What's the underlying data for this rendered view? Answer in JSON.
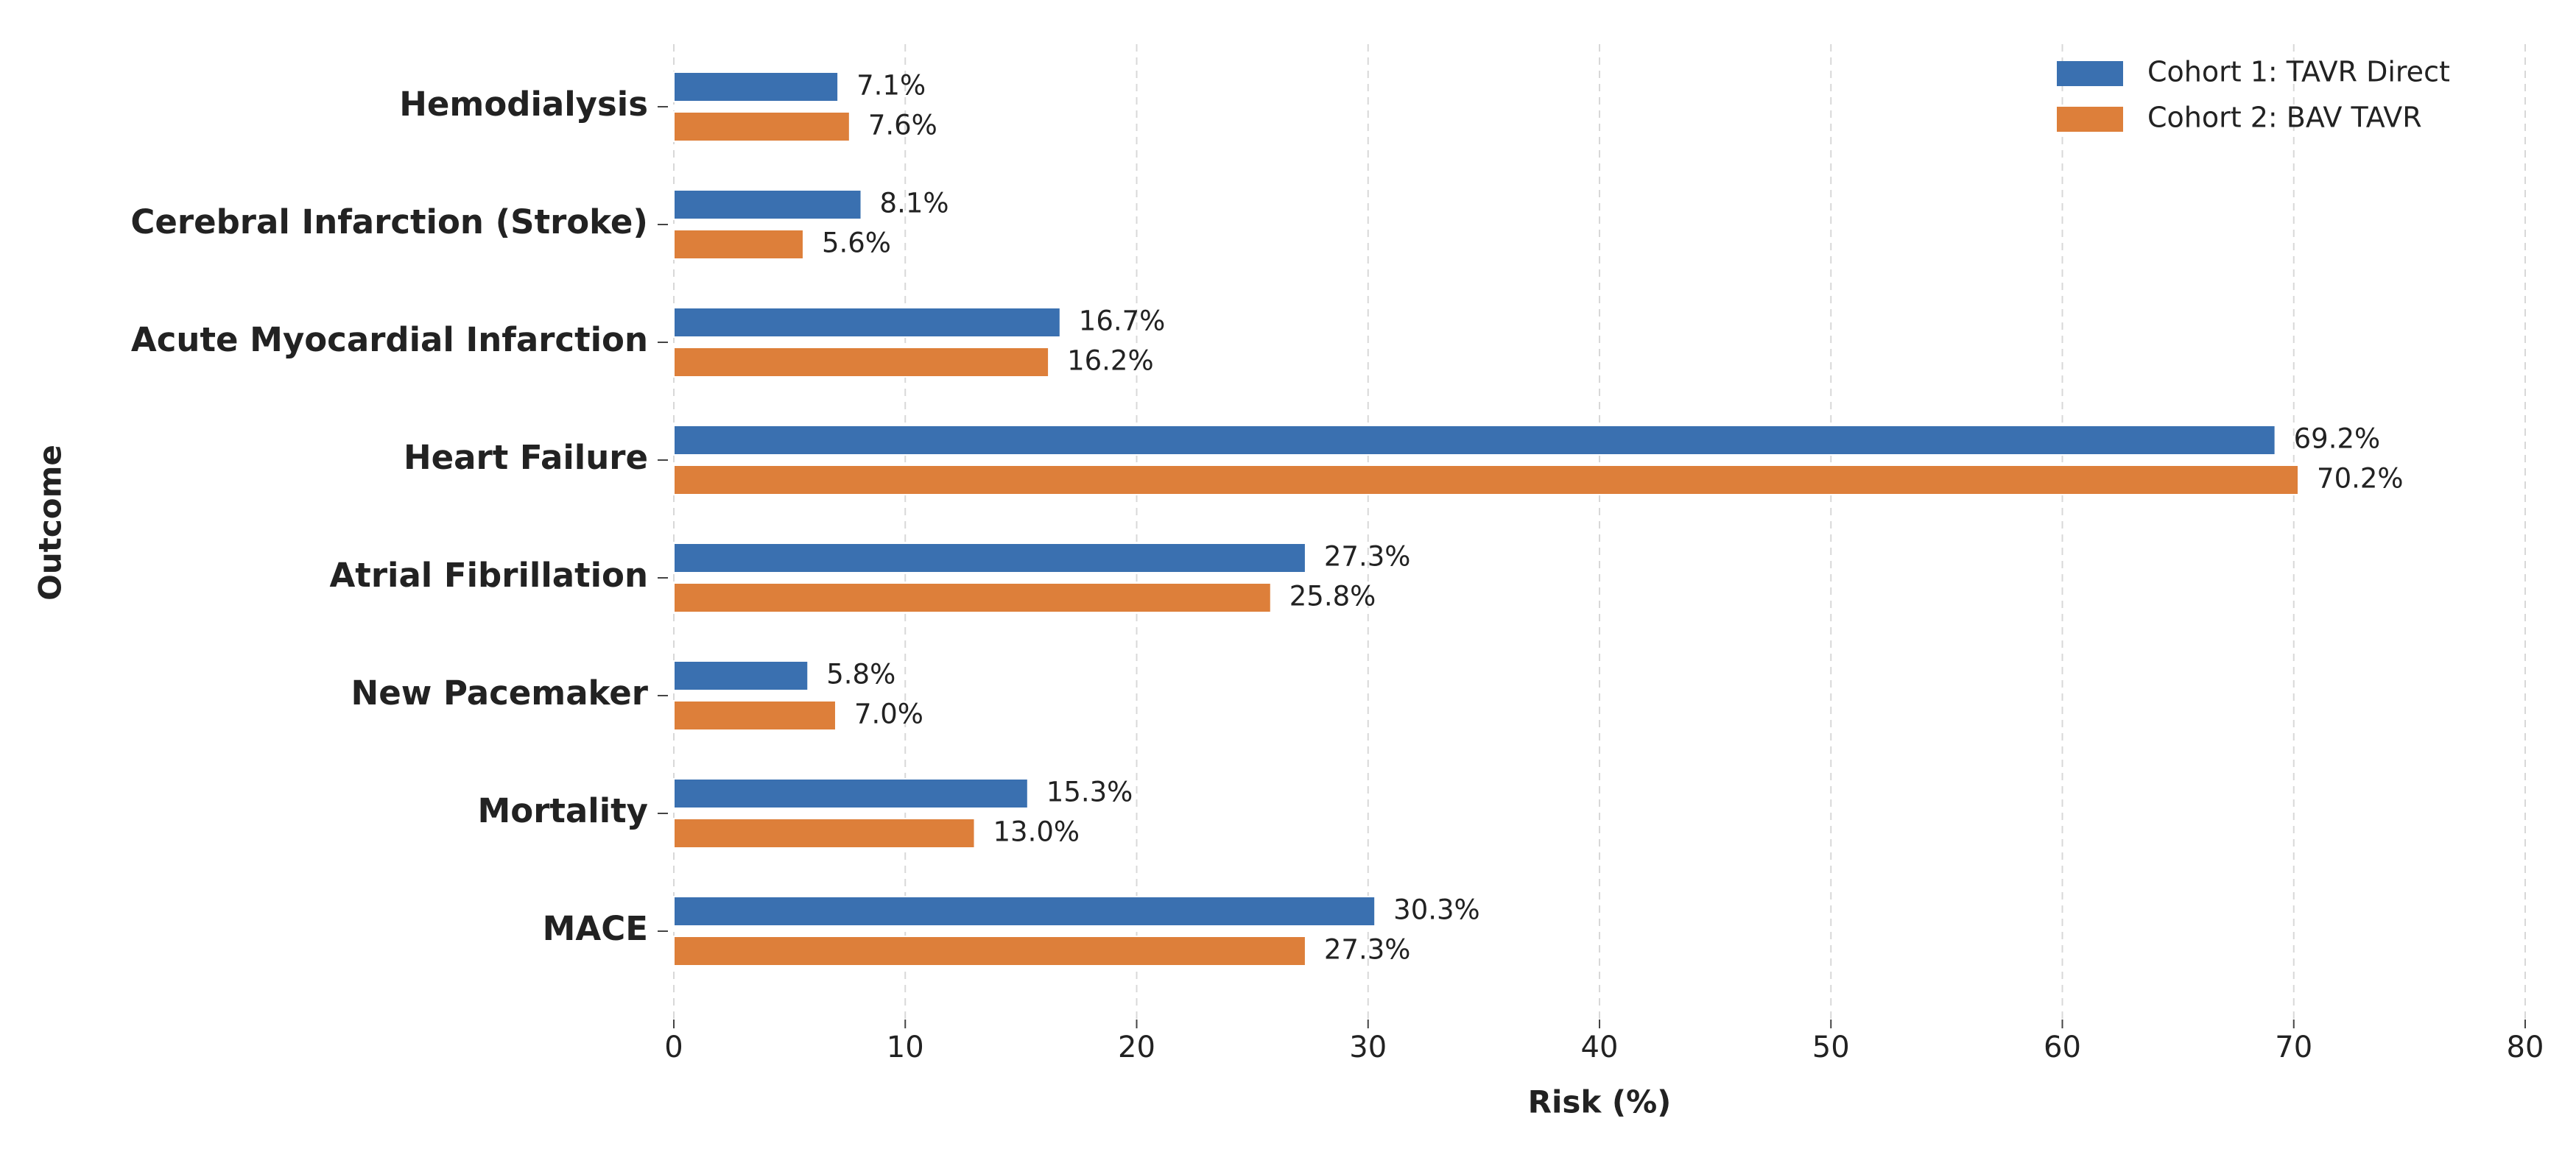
{
  "chart_data": {
    "type": "bar",
    "orientation": "horizontal",
    "xlabel": "Risk (%)",
    "ylabel": "Outcome",
    "categories": [
      "Hemodialysis",
      "Cerebral Infarction (Stroke)",
      "Acute Myocardial Infarction",
      "Heart Failure",
      "Atrial Fibrillation",
      "New Pacemaker",
      "Mortality",
      "MACE"
    ],
    "series": [
      {
        "name": "Cohort 1: TAVR Direct",
        "color": "#3a70b0",
        "values": [
          7.1,
          8.1,
          16.7,
          69.2,
          27.3,
          5.8,
          15.3,
          30.3
        ],
        "value_labels": [
          "7.1%",
          "8.1%",
          "16.7%",
          "69.2%",
          "27.3%",
          "5.8%",
          "15.3%",
          "30.3%"
        ]
      },
      {
        "name": "Cohort 2: BAV TAVR",
        "color": "#dd7f3a",
        "values": [
          7.6,
          5.6,
          16.2,
          70.2,
          25.8,
          7.0,
          13.0,
          27.3
        ],
        "value_labels": [
          "7.6%",
          "5.6%",
          "16.2%",
          "70.2%",
          "25.8%",
          "7.0%",
          "13.0%",
          "27.3%"
        ]
      }
    ],
    "xlim": [
      0,
      80
    ],
    "xticks": [
      0,
      10,
      20,
      30,
      40,
      50,
      60,
      70,
      80
    ],
    "grid": true,
    "legend": "upper right"
  }
}
